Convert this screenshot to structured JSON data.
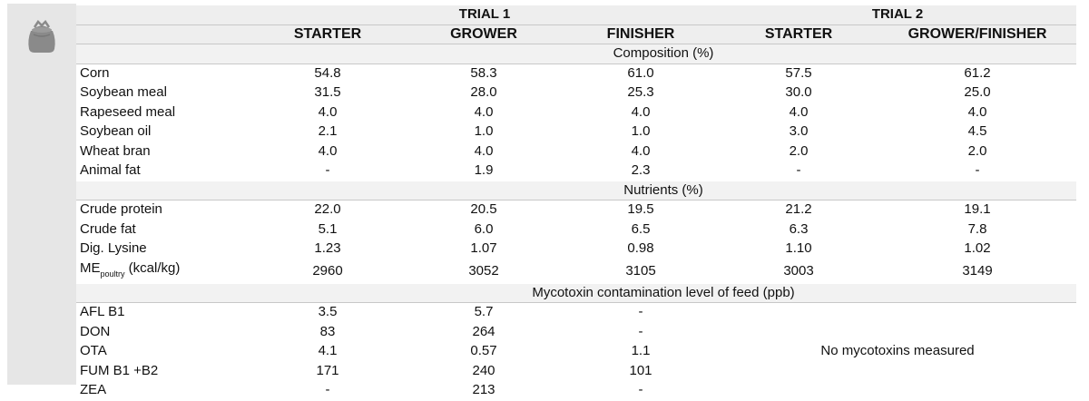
{
  "icon": "feed-bag-icon",
  "header": {
    "trial1": "TRIAL 1",
    "trial2": "TRIAL 2",
    "phases": [
      "STARTER",
      "GROWER",
      "FINISHER",
      "STARTER",
      "GROWER/FINISHER"
    ]
  },
  "composition": {
    "title": "Composition (%)",
    "rows": [
      {
        "label": "Corn",
        "values": [
          "54.8",
          "58.3",
          "61.0",
          "57.5",
          "61.2"
        ]
      },
      {
        "label": "Soybean meal",
        "values": [
          "31.5",
          "28.0",
          "25.3",
          "30.0",
          "25.0"
        ]
      },
      {
        "label": "Rapeseed meal",
        "values": [
          "4.0",
          "4.0",
          "4.0",
          "4.0",
          "4.0"
        ]
      },
      {
        "label": "Soybean oil",
        "values": [
          "2.1",
          "1.0",
          "1.0",
          "3.0",
          "4.5"
        ]
      },
      {
        "label": "Wheat bran",
        "values": [
          "4.0",
          "4.0",
          "4.0",
          "2.0",
          "2.0"
        ]
      },
      {
        "label": "Animal fat",
        "values": [
          "-",
          "1.9",
          "2.3",
          "-",
          "-"
        ]
      }
    ]
  },
  "nutrients": {
    "title": "Nutrients (%)",
    "rows": [
      {
        "label": "Crude protein",
        "values": [
          "22.0",
          "20.5",
          "19.5",
          "21.2",
          "19.1"
        ]
      },
      {
        "label": "Crude fat",
        "values": [
          "5.1",
          "6.0",
          "6.5",
          "6.3",
          "7.8"
        ]
      },
      {
        "label": "Dig. Lysine",
        "values": [
          "1.23",
          "1.07",
          "0.98",
          "1.10",
          "1.02"
        ]
      }
    ],
    "me_row": {
      "label_main": "ME",
      "label_sub": "poultry",
      "label_unit": " (kcal/kg)",
      "values": [
        "2960",
        "3052",
        "3105",
        "3003",
        "3149"
      ]
    }
  },
  "mycotoxin": {
    "title": "Mycotoxin contamination level of feed (ppb)",
    "rows": [
      {
        "label": "AFL B1",
        "values": [
          "3.5",
          "5.7",
          "-"
        ]
      },
      {
        "label": "DON",
        "values": [
          "83",
          "264",
          "-"
        ]
      },
      {
        "label": "OTA",
        "values": [
          "4.1",
          "0.57",
          "1.1"
        ]
      },
      {
        "label": "FUM B1 +B2",
        "values": [
          "171",
          "240",
          "101"
        ]
      },
      {
        "label": "ZEA",
        "values": [
          "-",
          "213",
          "-"
        ]
      }
    ],
    "trial2_note": "No mycotoxins measured"
  }
}
